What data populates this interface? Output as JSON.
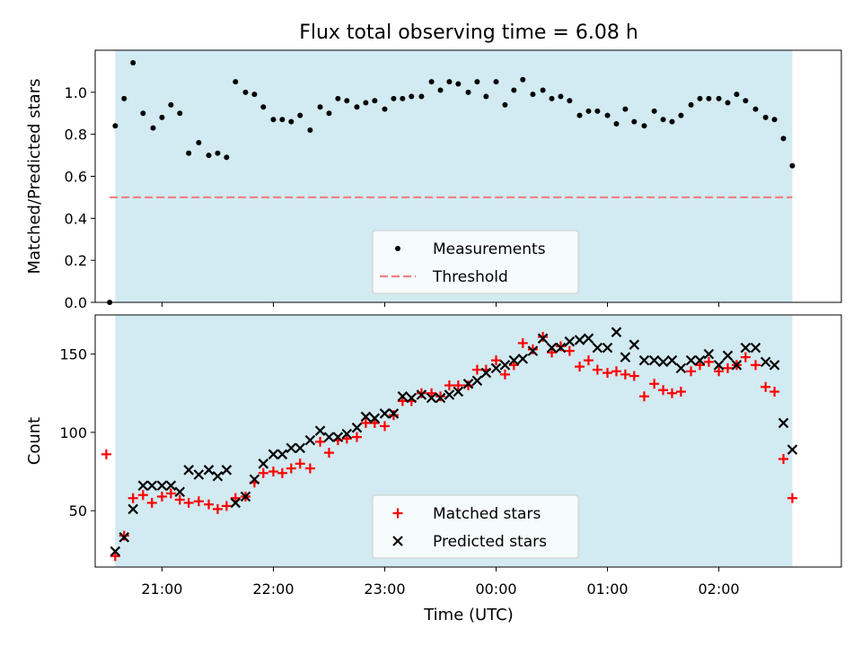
{
  "colors": {
    "span": "#add8e6",
    "measurement": "#000000",
    "threshold": "#f08080",
    "matched": "#ff0000",
    "predicted": "#000000"
  },
  "chart_data": [
    {
      "type": "scatter",
      "title": "Flux total observing time = 6.08 h",
      "xlabel": "",
      "ylabel": "Matched/Predicted stars",
      "xlim": [
        20.4,
        27.1
      ],
      "ylim": [
        0.0,
        1.2
      ],
      "yticks": [
        0.0,
        0.2,
        0.4,
        0.6,
        0.8,
        1.0
      ],
      "ytick_labels": [
        "0.0",
        "0.2",
        "0.4",
        "0.6",
        "0.8",
        "1.0"
      ],
      "xticks": [
        21,
        22,
        23,
        24,
        25,
        26
      ],
      "shaded_span": [
        20.58,
        26.66
      ],
      "legend_position": "lower center",
      "series": [
        {
          "name": "Measurements",
          "marker": "dot",
          "points": [
            [
              20.53,
              0.0
            ],
            [
              20.58,
              0.84
            ],
            [
              20.66,
              0.97
            ],
            [
              20.74,
              1.14
            ],
            [
              20.83,
              0.9
            ],
            [
              20.92,
              0.83
            ],
            [
              21.0,
              0.88
            ],
            [
              21.08,
              0.94
            ],
            [
              21.16,
              0.9
            ],
            [
              21.24,
              0.71
            ],
            [
              21.33,
              0.76
            ],
            [
              21.42,
              0.7
            ],
            [
              21.5,
              0.71
            ],
            [
              21.58,
              0.69
            ],
            [
              21.66,
              1.05
            ],
            [
              21.75,
              1.0
            ],
            [
              21.83,
              0.99
            ],
            [
              21.91,
              0.93
            ],
            [
              22.0,
              0.87
            ],
            [
              22.08,
              0.87
            ],
            [
              22.16,
              0.86
            ],
            [
              22.24,
              0.89
            ],
            [
              22.33,
              0.82
            ],
            [
              22.42,
              0.93
            ],
            [
              22.5,
              0.9
            ],
            [
              22.58,
              0.97
            ],
            [
              22.66,
              0.96
            ],
            [
              22.75,
              0.93
            ],
            [
              22.83,
              0.95
            ],
            [
              22.91,
              0.96
            ],
            [
              23.0,
              0.92
            ],
            [
              23.08,
              0.97
            ],
            [
              23.16,
              0.97
            ],
            [
              23.24,
              0.98
            ],
            [
              23.33,
              0.98
            ],
            [
              23.42,
              1.05
            ],
            [
              23.5,
              1.01
            ],
            [
              23.58,
              1.05
            ],
            [
              23.66,
              1.04
            ],
            [
              23.75,
              1.0
            ],
            [
              23.83,
              1.05
            ],
            [
              23.91,
              0.98
            ],
            [
              24.0,
              1.05
            ],
            [
              24.08,
              0.94
            ],
            [
              24.16,
              1.01
            ],
            [
              24.24,
              1.06
            ],
            [
              24.33,
              0.99
            ],
            [
              24.42,
              1.01
            ],
            [
              24.5,
              0.97
            ],
            [
              24.58,
              0.98
            ],
            [
              24.66,
              0.96
            ],
            [
              24.75,
              0.89
            ],
            [
              24.83,
              0.91
            ],
            [
              24.91,
              0.91
            ],
            [
              25.0,
              0.89
            ],
            [
              25.08,
              0.85
            ],
            [
              25.16,
              0.92
            ],
            [
              25.24,
              0.86
            ],
            [
              25.33,
              0.84
            ],
            [
              25.42,
              0.91
            ],
            [
              25.5,
              0.87
            ],
            [
              25.58,
              0.86
            ],
            [
              25.66,
              0.89
            ],
            [
              25.75,
              0.94
            ],
            [
              25.83,
              0.97
            ],
            [
              25.91,
              0.97
            ],
            [
              26.0,
              0.97
            ],
            [
              26.08,
              0.95
            ],
            [
              26.16,
              0.99
            ],
            [
              26.24,
              0.96
            ],
            [
              26.33,
              0.92
            ],
            [
              26.42,
              0.88
            ],
            [
              26.5,
              0.87
            ],
            [
              26.58,
              0.78
            ],
            [
              26.66,
              0.65
            ]
          ]
        },
        {
          "name": "Threshold",
          "type": "hline",
          "y": 0.5,
          "xrange": [
            20.53,
            26.66
          ]
        }
      ]
    },
    {
      "type": "scatter",
      "title": "",
      "xlabel": "Time (UTC)",
      "ylabel": "Count",
      "xlim": [
        20.4,
        27.1
      ],
      "ylim": [
        14.0,
        175.0
      ],
      "yticks": [
        50,
        100,
        150
      ],
      "ytick_labels": [
        "50",
        "100",
        "150"
      ],
      "xticks": [
        21,
        22,
        23,
        24,
        25,
        26
      ],
      "xtick_labels": [
        "21:00",
        "22:00",
        "23:00",
        "00:00",
        "01:00",
        "02:00"
      ],
      "shaded_span": [
        20.58,
        26.66
      ],
      "legend_position": "lower center",
      "series": [
        {
          "name": "Matched stars",
          "marker": "plus",
          "points": [
            [
              20.5,
              86
            ],
            [
              20.58,
              21
            ],
            [
              20.66,
              34
            ],
            [
              20.74,
              58
            ],
            [
              20.83,
              60
            ],
            [
              20.91,
              55
            ],
            [
              21.0,
              59
            ],
            [
              21.08,
              61
            ],
            [
              21.16,
              57
            ],
            [
              21.24,
              55
            ],
            [
              21.33,
              56
            ],
            [
              21.42,
              54
            ],
            [
              21.5,
              51
            ],
            [
              21.58,
              53
            ],
            [
              21.66,
              58
            ],
            [
              21.75,
              59
            ],
            [
              21.83,
              68
            ],
            [
              21.91,
              74
            ],
            [
              22.0,
              75
            ],
            [
              22.08,
              74
            ],
            [
              22.16,
              77
            ],
            [
              22.24,
              80
            ],
            [
              22.33,
              77
            ],
            [
              22.42,
              94
            ],
            [
              22.5,
              87
            ],
            [
              22.58,
              95
            ],
            [
              22.66,
              96
            ],
            [
              22.75,
              97
            ],
            [
              22.83,
              106
            ],
            [
              22.91,
              106
            ],
            [
              23.0,
              104
            ],
            [
              23.08,
              111
            ],
            [
              23.16,
              120
            ],
            [
              23.24,
              120
            ],
            [
              23.33,
              125
            ],
            [
              23.42,
              125
            ],
            [
              23.5,
              123
            ],
            [
              23.58,
              130
            ],
            [
              23.66,
              130
            ],
            [
              23.75,
              130
            ],
            [
              23.83,
              140
            ],
            [
              23.91,
              140
            ],
            [
              24.0,
              146
            ],
            [
              24.08,
              137
            ],
            [
              24.16,
              143
            ],
            [
              24.24,
              157
            ],
            [
              24.33,
              153
            ],
            [
              24.42,
              161
            ],
            [
              24.5,
              151
            ],
            [
              24.58,
              155
            ],
            [
              24.66,
              152
            ],
            [
              24.75,
              142
            ],
            [
              24.83,
              146
            ],
            [
              24.91,
              140
            ],
            [
              25.0,
              138
            ],
            [
              25.08,
              139
            ],
            [
              25.16,
              137
            ],
            [
              25.24,
              136
            ],
            [
              25.33,
              123
            ],
            [
              25.42,
              131
            ],
            [
              25.5,
              127
            ],
            [
              25.58,
              125
            ],
            [
              25.66,
              126
            ],
            [
              25.75,
              139
            ],
            [
              25.83,
              143
            ],
            [
              25.91,
              145
            ],
            [
              26.0,
              139
            ],
            [
              26.08,
              141
            ],
            [
              26.16,
              143
            ],
            [
              26.24,
              148
            ],
            [
              26.33,
              143
            ],
            [
              26.42,
              129
            ],
            [
              26.5,
              126
            ],
            [
              26.58,
              83
            ],
            [
              26.66,
              58
            ]
          ]
        },
        {
          "name": "Predicted stars",
          "marker": "x",
          "points": [
            [
              20.58,
              24
            ],
            [
              20.66,
              33
            ],
            [
              20.74,
              51
            ],
            [
              20.83,
              66
            ],
            [
              20.91,
              66
            ],
            [
              21.0,
              66
            ],
            [
              21.08,
              66
            ],
            [
              21.16,
              62
            ],
            [
              21.24,
              76
            ],
            [
              21.33,
              73
            ],
            [
              21.42,
              76
            ],
            [
              21.5,
              72
            ],
            [
              21.58,
              76
            ],
            [
              21.66,
              55
            ],
            [
              21.75,
              59
            ],
            [
              21.83,
              70
            ],
            [
              21.91,
              80
            ],
            [
              22.0,
              86
            ],
            [
              22.08,
              86
            ],
            [
              22.16,
              90
            ],
            [
              22.24,
              90
            ],
            [
              22.33,
              95
            ],
            [
              22.42,
              101
            ],
            [
              22.5,
              97
            ],
            [
              22.58,
              97
            ],
            [
              22.66,
              99
            ],
            [
              22.75,
              103
            ],
            [
              22.83,
              110
            ],
            [
              22.91,
              109
            ],
            [
              23.0,
              112
            ],
            [
              23.08,
              112
            ],
            [
              23.16,
              123
            ],
            [
              23.24,
              122
            ],
            [
              23.33,
              124
            ],
            [
              23.42,
              122
            ],
            [
              23.5,
              122
            ],
            [
              23.58,
              124
            ],
            [
              23.66,
              126
            ],
            [
              23.75,
              131
            ],
            [
              23.83,
              133
            ],
            [
              23.91,
              138
            ],
            [
              24.0,
              141
            ],
            [
              24.08,
              143
            ],
            [
              24.16,
              146
            ],
            [
              24.24,
              147
            ],
            [
              24.33,
              152
            ],
            [
              24.42,
              160
            ],
            [
              24.5,
              154
            ],
            [
              24.58,
              154
            ],
            [
              24.66,
              158
            ],
            [
              24.75,
              159
            ],
            [
              24.83,
              160
            ],
            [
              24.91,
              154
            ],
            [
              25.0,
              154
            ],
            [
              25.08,
              164
            ],
            [
              25.16,
              148
            ],
            [
              25.24,
              156
            ],
            [
              25.33,
              146
            ],
            [
              25.42,
              146
            ],
            [
              25.5,
              145
            ],
            [
              25.58,
              146
            ],
            [
              25.66,
              141
            ],
            [
              25.75,
              146
            ],
            [
              25.83,
              146
            ],
            [
              25.91,
              150
            ],
            [
              26.0,
              143
            ],
            [
              26.08,
              149
            ],
            [
              26.16,
              143
            ],
            [
              26.24,
              154
            ],
            [
              26.33,
              154
            ],
            [
              26.42,
              145
            ],
            [
              26.5,
              143
            ],
            [
              26.58,
              106
            ],
            [
              26.66,
              89
            ]
          ]
        }
      ]
    }
  ]
}
